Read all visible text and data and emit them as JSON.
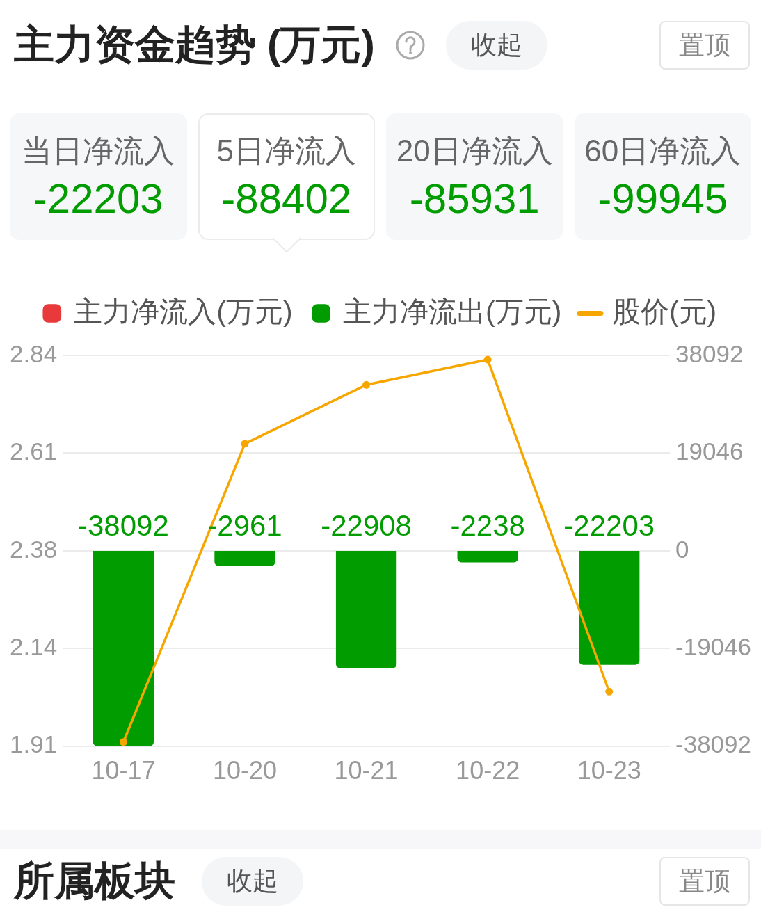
{
  "chart_data": [
    {
      "type": "other",
      "title": "主力资金趋势 (万元)",
      "annotations": [
        "收起",
        "置顶"
      ],
      "categories": [
        "当日净流入",
        "5日净流入",
        "20日净流入",
        "60日净流入"
      ],
      "values": [
        -22203,
        -88402,
        -85931,
        -99945
      ],
      "data_labels": true
    },
    {
      "type": "bar",
      "categories": [
        "10-17",
        "10-20",
        "10-21",
        "10-22",
        "10-23"
      ],
      "series": [
        {
          "name": "主力净流入(万元)",
          "type": "bar",
          "axis": "y2",
          "color": "#e83a3a",
          "values": [
            null,
            null,
            null,
            null,
            null
          ]
        },
        {
          "name": "主力净流出(万元)",
          "type": "bar",
          "axis": "y2",
          "color": "#009c00",
          "values": [
            -38092,
            -2961,
            -22908,
            -2238,
            -22203
          ],
          "value_labels": [
            "-38092",
            "-2961",
            "-22908",
            "-2238",
            "-22203"
          ]
        },
        {
          "name": "股价(元)",
          "type": "line",
          "color": "#f7a600",
          "values": [
            1.92,
            2.63,
            2.77,
            2.83,
            2.04
          ]
        }
      ],
      "ylim": [
        1.91,
        2.84
      ],
      "yticks": [
        1.91,
        {
          "value": 2.1425,
          "label": "2.14"
        },
        {
          "value": 2.375,
          "label": "2.38"
        },
        {
          "value": 2.6075,
          "label": "2.61"
        },
        2.84
      ],
      "y2lim": [
        -38092,
        38092
      ],
      "y2ticks": [
        -38092,
        -19046,
        0,
        19046,
        38092
      ],
      "grid": "y",
      "legend": "top",
      "marker": "circle",
      "line_style": "solid"
    },
    {
      "type": "other",
      "title": "所属板块",
      "annotations": [
        "收起",
        "置顶"
      ]
    }
  ]
}
